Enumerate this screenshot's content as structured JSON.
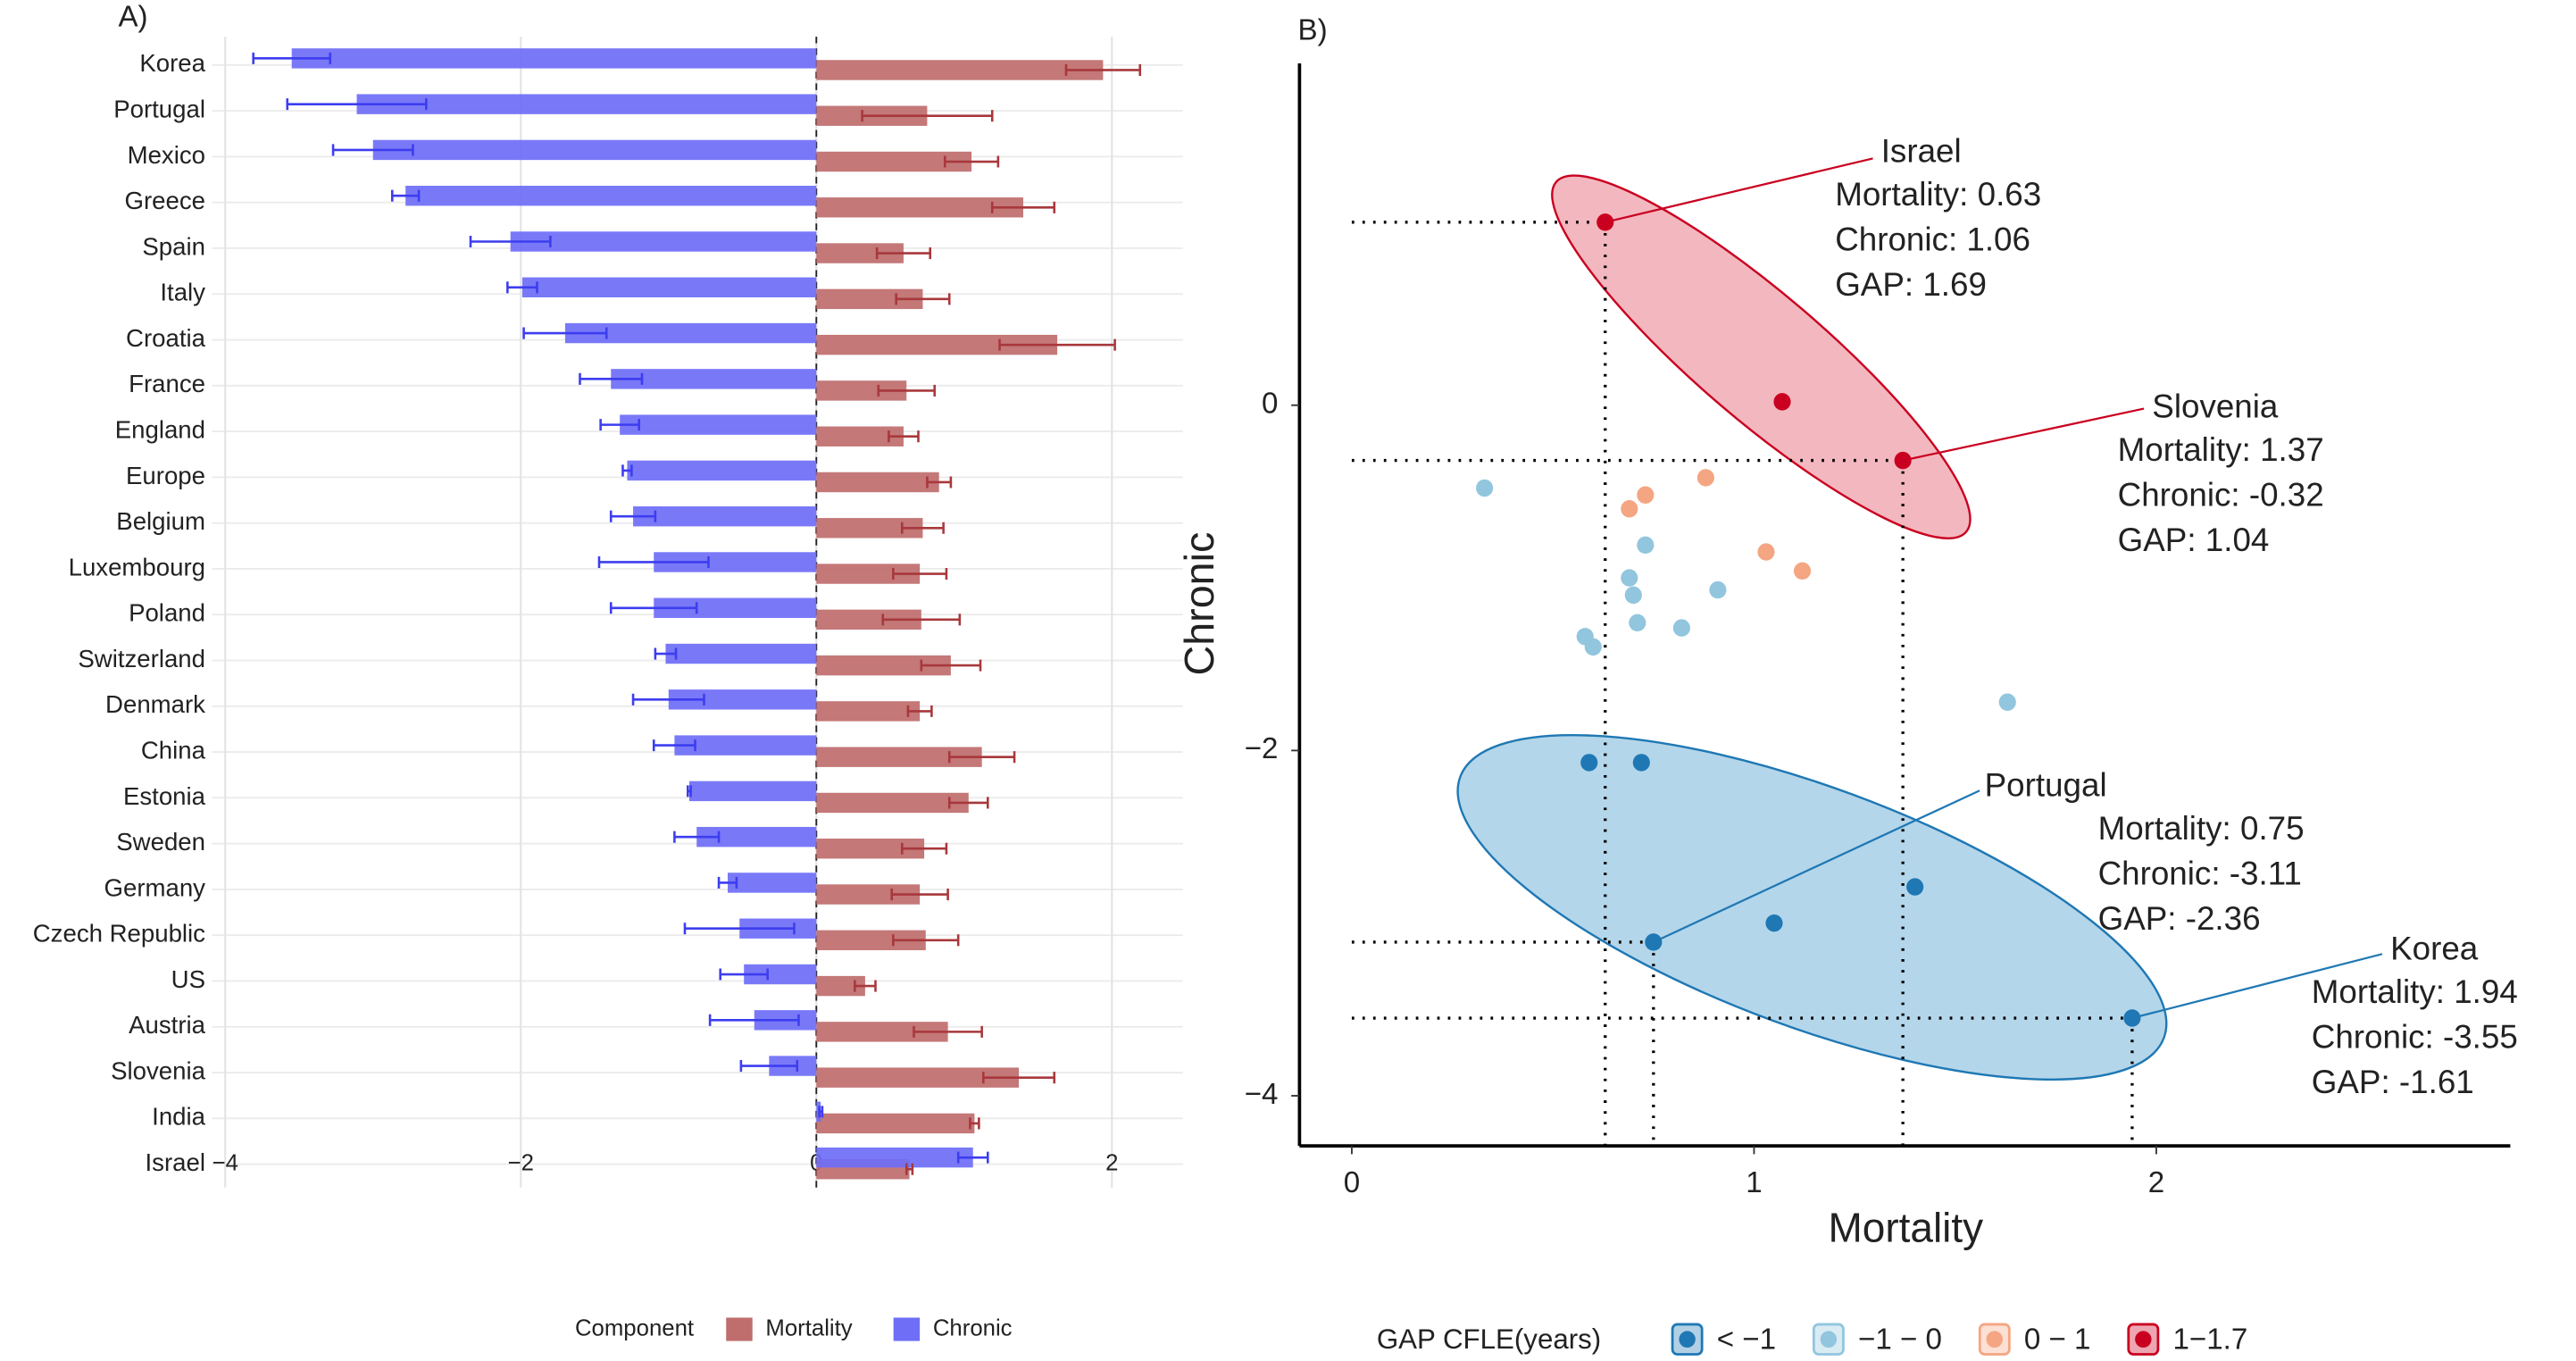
{
  "chart_data": [
    {
      "type": "bar",
      "orientation": "horizontal",
      "panel_label": "A)",
      "legend_title": "Component",
      "legend": "bottom",
      "grid": true,
      "categories": [
        "Korea",
        "Portugal",
        "Mexico",
        "Greece",
        "Spain",
        "Italy",
        "Croatia",
        "France",
        "England",
        "Europe",
        "Belgium",
        "Luxembourg",
        "Poland",
        "Switzerland",
        "Denmark",
        "China",
        "Estonia",
        "Sweden",
        "Germany",
        "Czech Republic",
        "US",
        "Austria",
        "Slovenia",
        "India",
        "Israel"
      ],
      "series": [
        {
          "name": "Mortality",
          "color": "#bf6d6d",
          "values": [
            1.94,
            0.75,
            1.05,
            1.4,
            0.59,
            0.72,
            1.63,
            0.61,
            0.59,
            0.83,
            0.72,
            0.7,
            0.71,
            0.91,
            0.7,
            1.12,
            1.03,
            0.73,
            0.7,
            0.74,
            0.33,
            0.89,
            1.37,
            1.07,
            0.63
          ],
          "errors": [
            0.25,
            0.44,
            0.18,
            0.21,
            0.18,
            0.18,
            0.39,
            0.19,
            0.1,
            0.08,
            0.14,
            0.18,
            0.26,
            0.2,
            0.08,
            0.22,
            0.13,
            0.15,
            0.19,
            0.22,
            0.07,
            0.23,
            0.24,
            0.03,
            0.02
          ]
        },
        {
          "name": "Chronic",
          "color": "#6e6ef7",
          "values": [
            -3.55,
            -3.11,
            -3.0,
            -2.78,
            -2.07,
            -1.99,
            -1.7,
            -1.39,
            -1.33,
            -1.28,
            -1.24,
            -1.1,
            -1.1,
            -1.02,
            -1.0,
            -0.96,
            -0.86,
            -0.81,
            -0.6,
            -0.52,
            -0.49,
            -0.42,
            -0.32,
            0.03,
            1.06
          ],
          "errors": [
            0.26,
            0.47,
            0.27,
            0.09,
            0.27,
            0.1,
            0.28,
            0.21,
            0.13,
            0.03,
            0.15,
            0.37,
            0.29,
            0.07,
            0.24,
            0.14,
            0.01,
            0.15,
            0.06,
            0.37,
            0.16,
            0.3,
            0.19,
            0.01,
            0.1
          ]
        }
      ],
      "xlim": [
        -4.09,
        2.48
      ],
      "xticks": [
        {
          "value": -4,
          "label": "−4"
        },
        {
          "value": -2,
          "label": "−2"
        },
        0,
        2
      ]
    },
    {
      "type": "scatter",
      "panel_label": "B)",
      "x_label": "Mortality",
      "y_label": "Chronic",
      "legend_title": "GAP CFLE(years)",
      "legend": "bottom",
      "xlim": [
        -0.13,
        2.88
      ],
      "ylim": [
        -4.29,
        1.98
      ],
      "xticks": [
        0,
        1,
        2
      ],
      "yticks": [
        {
          "value": -4,
          "label": "−4"
        },
        {
          "value": -2,
          "label": "−2"
        },
        0
      ],
      "series": [
        {
          "name": "< −1",
          "color": "#1f78b4",
          "x": [
            0.59,
            0.72,
            0.75,
            1.05,
            1.4,
            1.94
          ],
          "y": [
            -2.07,
            -2.07,
            -3.11,
            -3.0,
            -2.79,
            -3.55
          ]
        },
        {
          "name": "−1 − 0",
          "color": "#92c5de",
          "x": [
            0.33,
            0.73,
            0.69,
            0.7,
            0.71,
            0.82,
            0.91,
            0.58,
            0.6,
            1.63
          ],
          "y": [
            -0.48,
            -0.81,
            -1.0,
            -1.1,
            -1.26,
            -1.29,
            -1.07,
            -1.34,
            -1.4,
            -1.72
          ]
        },
        {
          "name": "0 − 1",
          "color": "#f4a582",
          "x": [
            0.69,
            0.73,
            0.88,
            1.03,
            1.12
          ],
          "y": [
            -0.6,
            -0.52,
            -0.42,
            -0.85,
            -0.96
          ]
        },
        {
          "name": "1−1.7",
          "color": "#ca0020",
          "x": [
            0.63,
            1.07,
            1.37
          ],
          "y": [
            1.06,
            0.02,
            -0.32
          ]
        }
      ],
      "annotations": [
        {
          "label": "Israel",
          "color": "#ca0020",
          "x": 0.63,
          "y": 1.06,
          "lines": [
            "Mortality: 0.63",
            "Chronic: 1.06",
            "GAP: 1.69"
          ]
        },
        {
          "label": "Slovenia",
          "color": "#ca0020",
          "x": 1.37,
          "y": -0.32,
          "lines": [
            "Mortality: 1.37",
            "Chronic: -0.32",
            "GAP: 1.04"
          ]
        },
        {
          "label": "Portugal",
          "color": "#1f78b4",
          "x": 0.75,
          "y": -3.11,
          "lines": [
            "Mortality: 0.75",
            "Chronic: -3.11",
            "GAP: -2.36"
          ]
        },
        {
          "label": "Korea",
          "color": "#1f78b4",
          "x": 1.94,
          "y": -3.55,
          "lines": [
            "Mortality: 1.94",
            "Chronic: -3.55",
            "GAP: -1.61"
          ]
        }
      ]
    }
  ]
}
